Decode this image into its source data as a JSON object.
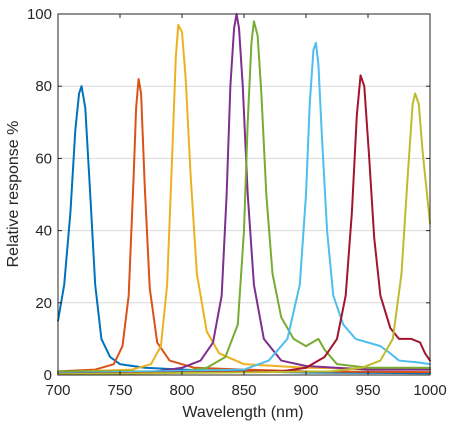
{
  "chart_data": {
    "type": "line",
    "title": "",
    "xlabel": "Wavelength (nm)",
    "ylabel": "Relative response %",
    "xlim": [
      700,
      1000
    ],
    "ylim": [
      0,
      100
    ],
    "xticks": [
      700,
      750,
      800,
      850,
      900,
      950,
      1000
    ],
    "yticks": [
      0,
      20,
      40,
      60,
      80,
      100
    ],
    "grid": "horizontal",
    "legend": "none",
    "series": [
      {
        "color": "#0072BD",
        "points": [
          [
            700,
            15
          ],
          [
            705,
            25
          ],
          [
            710,
            45
          ],
          [
            714,
            68
          ],
          [
            717,
            78
          ],
          [
            719,
            80
          ],
          [
            722,
            74
          ],
          [
            726,
            50
          ],
          [
            730,
            25
          ],
          [
            735,
            10
          ],
          [
            742,
            5
          ],
          [
            750,
            3
          ],
          [
            770,
            2
          ],
          [
            800,
            1.5
          ],
          [
            850,
            1
          ],
          [
            900,
            0.7
          ],
          [
            1000,
            0.5
          ]
        ]
      },
      {
        "color": "#D95319",
        "points": [
          [
            700,
            1
          ],
          [
            730,
            1.5
          ],
          [
            745,
            3
          ],
          [
            752,
            8
          ],
          [
            757,
            22
          ],
          [
            761,
            55
          ],
          [
            763,
            74
          ],
          [
            765,
            82
          ],
          [
            767,
            78
          ],
          [
            770,
            52
          ],
          [
            774,
            24
          ],
          [
            780,
            9
          ],
          [
            790,
            4
          ],
          [
            810,
            2
          ],
          [
            850,
            1.5
          ],
          [
            900,
            1
          ],
          [
            1000,
            0.8
          ]
        ]
      },
      {
        "color": "#EDB120",
        "points": [
          [
            700,
            0.8
          ],
          [
            760,
            1.5
          ],
          [
            775,
            3
          ],
          [
            783,
            8
          ],
          [
            788,
            25
          ],
          [
            792,
            60
          ],
          [
            795,
            88
          ],
          [
            797,
            97
          ],
          [
            800,
            95
          ],
          [
            803,
            82
          ],
          [
            807,
            55
          ],
          [
            812,
            28
          ],
          [
            820,
            12
          ],
          [
            830,
            6
          ],
          [
            850,
            3
          ],
          [
            900,
            2
          ],
          [
            1000,
            1.5
          ]
        ]
      },
      {
        "color": "#7E2F8E",
        "points": [
          [
            700,
            0.5
          ],
          [
            780,
            1
          ],
          [
            800,
            2
          ],
          [
            815,
            4
          ],
          [
            825,
            9
          ],
          [
            832,
            22
          ],
          [
            836,
            50
          ],
          [
            839,
            80
          ],
          [
            842,
            96
          ],
          [
            844,
            100
          ],
          [
            846,
            96
          ],
          [
            849,
            80
          ],
          [
            853,
            50
          ],
          [
            858,
            25
          ],
          [
            866,
            10
          ],
          [
            880,
            4
          ],
          [
            900,
            2.5
          ],
          [
            950,
            1.5
          ],
          [
            1000,
            1.5
          ]
        ]
      },
      {
        "color": "#77AC30",
        "points": [
          [
            700,
            1
          ],
          [
            800,
            1
          ],
          [
            820,
            2
          ],
          [
            835,
            5
          ],
          [
            845,
            14
          ],
          [
            850,
            40
          ],
          [
            853,
            70
          ],
          [
            856,
            92
          ],
          [
            858,
            98
          ],
          [
            861,
            94
          ],
          [
            864,
            78
          ],
          [
            868,
            50
          ],
          [
            873,
            28
          ],
          [
            880,
            16
          ],
          [
            890,
            10
          ],
          [
            900,
            8
          ],
          [
            905,
            9
          ],
          [
            910,
            10
          ],
          [
            915,
            7
          ],
          [
            925,
            3
          ],
          [
            950,
            2
          ],
          [
            1000,
            2
          ]
        ]
      },
      {
        "color": "#4DBEEE",
        "points": [
          [
            700,
            0.5
          ],
          [
            850,
            1.5
          ],
          [
            870,
            4
          ],
          [
            885,
            10
          ],
          [
            895,
            25
          ],
          [
            900,
            50
          ],
          [
            903,
            75
          ],
          [
            906,
            90
          ],
          [
            908,
            92
          ],
          [
            910,
            86
          ],
          [
            913,
            65
          ],
          [
            917,
            40
          ],
          [
            922,
            22
          ],
          [
            930,
            14
          ],
          [
            940,
            10
          ],
          [
            950,
            9
          ],
          [
            960,
            8
          ],
          [
            968,
            6
          ],
          [
            975,
            4
          ],
          [
            990,
            3.5
          ],
          [
            1000,
            3
          ]
        ]
      },
      {
        "color": "#A2142F",
        "points": [
          [
            700,
            0.3
          ],
          [
            880,
            1
          ],
          [
            900,
            2
          ],
          [
            915,
            5
          ],
          [
            925,
            10
          ],
          [
            932,
            22
          ],
          [
            937,
            45
          ],
          [
            941,
            72
          ],
          [
            944,
            83
          ],
          [
            947,
            80
          ],
          [
            951,
            60
          ],
          [
            955,
            38
          ],
          [
            960,
            22
          ],
          [
            968,
            13
          ],
          [
            975,
            10
          ],
          [
            985,
            10
          ],
          [
            992,
            9
          ],
          [
            996,
            6
          ],
          [
            1000,
            4
          ]
        ]
      },
      {
        "color": "#BDBC2D",
        "points": [
          [
            700,
            0.2
          ],
          [
            920,
            1
          ],
          [
            945,
            2
          ],
          [
            960,
            4
          ],
          [
            970,
            10
          ],
          [
            977,
            28
          ],
          [
            982,
            55
          ],
          [
            986,
            75
          ],
          [
            988,
            78
          ],
          [
            991,
            75
          ],
          [
            994,
            62
          ],
          [
            997,
            52
          ],
          [
            1000,
            42
          ]
        ]
      }
    ]
  }
}
